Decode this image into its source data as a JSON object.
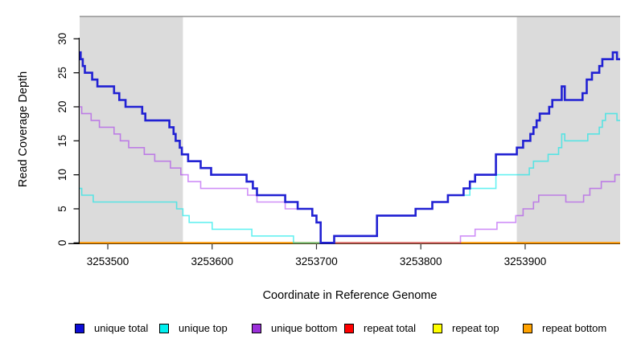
{
  "chart_data": {
    "type": "line",
    "subtype": "step",
    "title": "",
    "xlabel": "Coordinate in Reference Genome",
    "ylabel": "Read Coverage Depth",
    "xlim": [
      3253473,
      3253991
    ],
    "ylim": [
      0,
      33.3
    ],
    "x_ticks": [
      "3253500",
      "3253600",
      "3253700",
      "3253800",
      "3253900"
    ],
    "x_tick_values": [
      3253500,
      3253600,
      3253700,
      3253800,
      3253900
    ],
    "y_ticks": [
      "0",
      "5",
      "10",
      "15",
      "20",
      "25",
      "30"
    ],
    "y_tick_values": [
      0,
      5,
      10,
      15,
      20,
      25,
      30
    ],
    "grid": false,
    "legend_position": "bottom",
    "colors": {
      "background": "#ffffff",
      "shaded_band": "#dbdbdb",
      "top_border": "#9b9b9b",
      "axis": "#000000"
    },
    "shaded_regions": [
      {
        "from": 3253473,
        "to": 3253572
      },
      {
        "from": 3253892,
        "to": 3253991
      }
    ],
    "series": [
      {
        "name": "repeat total",
        "color": "#ee0000",
        "line_width": 1.5,
        "opacity": 1,
        "steps": [
          [
            3253473,
            0
          ]
        ]
      },
      {
        "name": "repeat top",
        "color": "#ffff00",
        "line_width": 1.5,
        "opacity": 1,
        "steps": [
          [
            3253473,
            0
          ]
        ]
      },
      {
        "name": "repeat bottom",
        "color": "#ff9800",
        "line_width": 2.2,
        "opacity": 1,
        "steps": [
          [
            3253473,
            0
          ]
        ]
      },
      {
        "name": "unique top",
        "color": "#00e8e8",
        "line_width": 1.6,
        "opacity": 0.6,
        "steps": [
          [
            3253473,
            8
          ],
          [
            3253475,
            7
          ],
          [
            3253486,
            6
          ],
          [
            3253566,
            5
          ],
          [
            3253572,
            4
          ],
          [
            3253578,
            3
          ],
          [
            3253600,
            2
          ],
          [
            3253638,
            1
          ],
          [
            3253678,
            0
          ],
          [
            3253717,
            1
          ],
          [
            3253758,
            4
          ],
          [
            3253795,
            5
          ],
          [
            3253811,
            6
          ],
          [
            3253826,
            7
          ],
          [
            3253847,
            8
          ],
          [
            3253872,
            10
          ],
          [
            3253904,
            11
          ],
          [
            3253908,
            12
          ],
          [
            3253922,
            13
          ],
          [
            3253932,
            14
          ],
          [
            3253935,
            16
          ],
          [
            3253938,
            15
          ],
          [
            3253960,
            16
          ],
          [
            3253971,
            17
          ],
          [
            3253974,
            18
          ],
          [
            3253977,
            19
          ],
          [
            3253988,
            18
          ]
        ]
      },
      {
        "name": "unique bottom",
        "color": "#a020f0",
        "line_width": 1.6,
        "opacity": 0.5,
        "steps": [
          [
            3253473,
            20
          ],
          [
            3253475,
            19
          ],
          [
            3253484,
            18
          ],
          [
            3253492,
            17
          ],
          [
            3253506,
            16
          ],
          [
            3253512,
            15
          ],
          [
            3253520,
            14
          ],
          [
            3253535,
            13
          ],
          [
            3253545,
            12
          ],
          [
            3253560,
            11
          ],
          [
            3253570,
            10
          ],
          [
            3253577,
            9
          ],
          [
            3253589,
            8
          ],
          [
            3253634,
            7
          ],
          [
            3253643,
            6
          ],
          [
            3253670,
            5
          ],
          [
            3253696,
            4
          ],
          [
            3253700,
            3
          ],
          [
            3253704,
            0
          ],
          [
            3253838,
            1
          ],
          [
            3253852,
            2
          ],
          [
            3253873,
            3
          ],
          [
            3253891,
            4
          ],
          [
            3253898,
            5
          ],
          [
            3253908,
            6
          ],
          [
            3253913,
            7
          ],
          [
            3253939,
            6
          ],
          [
            3253956,
            7
          ],
          [
            3253962,
            8
          ],
          [
            3253973,
            9
          ],
          [
            3253986,
            10
          ]
        ]
      },
      {
        "name": "unique total",
        "color": "#2121d3",
        "line_width": 2.6,
        "opacity": 1,
        "steps": [
          [
            3253473,
            28
          ],
          [
            3253474,
            27
          ],
          [
            3253476,
            26
          ],
          [
            3253478,
            25
          ],
          [
            3253485,
            24
          ],
          [
            3253490,
            23
          ],
          [
            3253506,
            22
          ],
          [
            3253511,
            21
          ],
          [
            3253517,
            20
          ],
          [
            3253533,
            19
          ],
          [
            3253536,
            18
          ],
          [
            3253559,
            17
          ],
          [
            3253563,
            16
          ],
          [
            3253565,
            15
          ],
          [
            3253569,
            14
          ],
          [
            3253571,
            13
          ],
          [
            3253577,
            12
          ],
          [
            3253589,
            11
          ],
          [
            3253599,
            10
          ],
          [
            3253633,
            9
          ],
          [
            3253639,
            8
          ],
          [
            3253643,
            7
          ],
          [
            3253670,
            6
          ],
          [
            3253682,
            5
          ],
          [
            3253696,
            4
          ],
          [
            3253700,
            3
          ],
          [
            3253704,
            0
          ],
          [
            3253717,
            1
          ],
          [
            3253758,
            4
          ],
          [
            3253795,
            5
          ],
          [
            3253811,
            6
          ],
          [
            3253826,
            7
          ],
          [
            3253841,
            8
          ],
          [
            3253847,
            9
          ],
          [
            3253852,
            10
          ],
          [
            3253872,
            13
          ],
          [
            3253892,
            14
          ],
          [
            3253898,
            15
          ],
          [
            3253905,
            16
          ],
          [
            3253908,
            17
          ],
          [
            3253911,
            18
          ],
          [
            3253914,
            19
          ],
          [
            3253923,
            20
          ],
          [
            3253926,
            21
          ],
          [
            3253935,
            23
          ],
          [
            3253938,
            21
          ],
          [
            3253955,
            22
          ],
          [
            3253959,
            24
          ],
          [
            3253964,
            25
          ],
          [
            3253971,
            26
          ],
          [
            3253974,
            27
          ],
          [
            3253984,
            28
          ],
          [
            3253988,
            27
          ]
        ]
      }
    ],
    "legend": [
      {
        "label": "unique total",
        "color": "#0d0dd6"
      },
      {
        "label": "unique top",
        "color": "#00efef"
      },
      {
        "label": "unique bottom",
        "color": "#9b30d9"
      },
      {
        "label": "repeat total",
        "color": "#ff0000"
      },
      {
        "label": "repeat top",
        "color": "#ffff00"
      },
      {
        "label": "repeat bottom",
        "color": "#ffa200"
      }
    ]
  }
}
